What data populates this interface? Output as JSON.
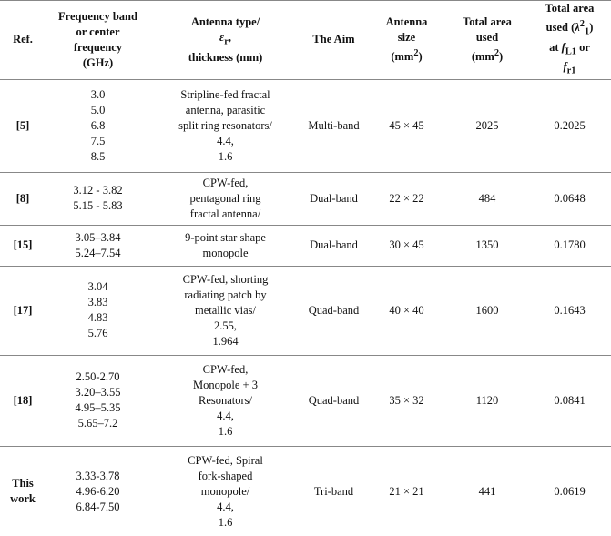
{
  "table": {
    "header": [
      [
        "Ref."
      ],
      [
        "Frequency band",
        "or center",
        "frequency",
        "(GHz)"
      ],
      [
        "Antenna type/",
        [
          {
            "i": "ε"
          },
          {
            "sub": "r"
          },
          {
            "t": ","
          }
        ],
        "thickness (mm)"
      ],
      [
        "The Aim"
      ],
      [
        "Antenna",
        "size",
        [
          {
            "t": "(mm"
          },
          {
            "sup": "2"
          },
          {
            "t": ")"
          }
        ]
      ],
      [
        "Total area",
        "used",
        [
          {
            "t": "(mm"
          },
          {
            "sup": "2"
          },
          {
            "t": ")"
          }
        ]
      ],
      [
        "Total area",
        [
          {
            "t": "used ("
          },
          {
            "i": "λ"
          },
          {
            "sup": "2"
          },
          {
            "sub": "1"
          },
          {
            "t": ")"
          }
        ],
        [
          {
            "t": "at "
          },
          {
            "i": "f"
          },
          {
            "sub": "L1"
          },
          {
            "t": " or"
          }
        ],
        [
          {
            "i": "f"
          },
          {
            "sub": "r1"
          }
        ]
      ]
    ],
    "rows": [
      [
        [
          "[5]"
        ],
        [
          "3.0",
          "5.0",
          "6.8",
          "7.5",
          "8.5"
        ],
        [
          "Stripline-fed fractal",
          "antenna, parasitic",
          "split ring resonators/",
          "4.4,",
          "1.6"
        ],
        [
          "Multi-band"
        ],
        [
          "45 × 45"
        ],
        [
          "2025"
        ],
        [
          "0.2025"
        ]
      ],
      [
        [
          "[8]"
        ],
        [
          "3.12 - 3.82",
          "5.15 - 5.83"
        ],
        [
          "CPW-fed,",
          "pentagonal ring",
          "fractal antenna/"
        ],
        [
          "Dual-band"
        ],
        [
          "22 × 22"
        ],
        [
          "484"
        ],
        [
          "0.0648"
        ]
      ],
      [
        [
          "[15]"
        ],
        [
          "3.05–3.84",
          "5.24–7.54"
        ],
        [
          "9-point star shape",
          "monopole"
        ],
        [
          "Dual-band"
        ],
        [
          "30 × 45"
        ],
        [
          "1350"
        ],
        [
          "0.1780"
        ]
      ],
      [
        [
          "[17]"
        ],
        [
          "3.04",
          "3.83",
          "4.83",
          "5.76"
        ],
        [
          "CPW-fed, shorting",
          "radiating patch by",
          "metallic vias/",
          "2.55,",
          "1.964"
        ],
        [
          "Quad-band"
        ],
        [
          "40 × 40"
        ],
        [
          "1600"
        ],
        [
          "0.1643"
        ]
      ],
      [
        [
          "[18]"
        ],
        [
          "2.50-2.70",
          "3.20–3.55",
          "4.95–5.35",
          "5.65–7.2"
        ],
        [
          "CPW-fed,",
          "Monopole + 3",
          "Resonators/",
          "4.4,",
          "1.6"
        ],
        [
          "Quad-band"
        ],
        [
          "35 × 32"
        ],
        [
          "1120"
        ],
        [
          "0.0841"
        ]
      ],
      [
        [
          "This",
          "work"
        ],
        [
          "3.33-3.78",
          "4.96-6.20",
          "6.84-7.50"
        ],
        [
          "CPW-fed, Spiral",
          "fork-shaped",
          "monopole/",
          "4.4,",
          "1.6"
        ],
        [
          "Tri-band"
        ],
        [
          "21 × 21"
        ],
        [
          "441"
        ],
        [
          "0.0619"
        ]
      ]
    ]
  }
}
